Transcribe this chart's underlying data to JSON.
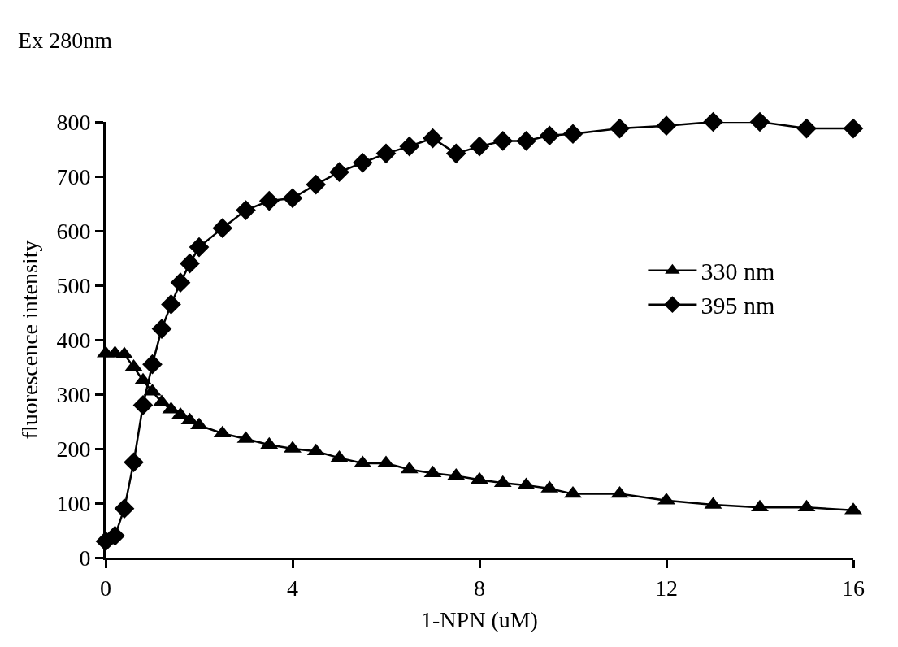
{
  "chart_data": {
    "type": "line",
    "title": "Ex 280nm",
    "xlabel": "1-NPN (uM)",
    "ylabel": "fluorescence intensity",
    "x": [
      0,
      0.2,
      0.4,
      0.6,
      0.8,
      1.0,
      1.2,
      1.4,
      1.6,
      1.8,
      2.0,
      2.5,
      3,
      3.5,
      4,
      4.5,
      5,
      5.5,
      6,
      6.5,
      7,
      7.5,
      8,
      8.5,
      9,
      9.5,
      10,
      11,
      12,
      13,
      14,
      15,
      16
    ],
    "series": [
      {
        "name": "330 nm",
        "color": "#000000",
        "marker": "triangle",
        "values": [
          375,
          375,
          373,
          350,
          325,
          305,
          285,
          272,
          262,
          252,
          243,
          228,
          218,
          207,
          200,
          195,
          183,
          173,
          173,
          162,
          155,
          150,
          143,
          137,
          133,
          127,
          117,
          117,
          105,
          97,
          92,
          92,
          87
        ]
      },
      {
        "name": "395 nm",
        "color": "#000000",
        "marker": "diamond",
        "values": [
          30,
          40,
          90,
          175,
          280,
          355,
          420,
          465,
          505,
          540,
          570,
          605,
          638,
          655,
          660,
          685,
          708,
          725,
          742,
          755,
          770,
          742,
          755,
          765,
          765,
          775,
          778,
          788,
          793,
          800,
          800,
          788,
          788
        ]
      }
    ],
    "xlim": [
      0,
      16
    ],
    "xticks": [
      0,
      4,
      8,
      12,
      16
    ],
    "ylim": [
      0,
      800
    ],
    "yticks": [
      0,
      100,
      200,
      300,
      400,
      500,
      600,
      700,
      800
    ],
    "legend": "right",
    "line_style": "solid"
  }
}
